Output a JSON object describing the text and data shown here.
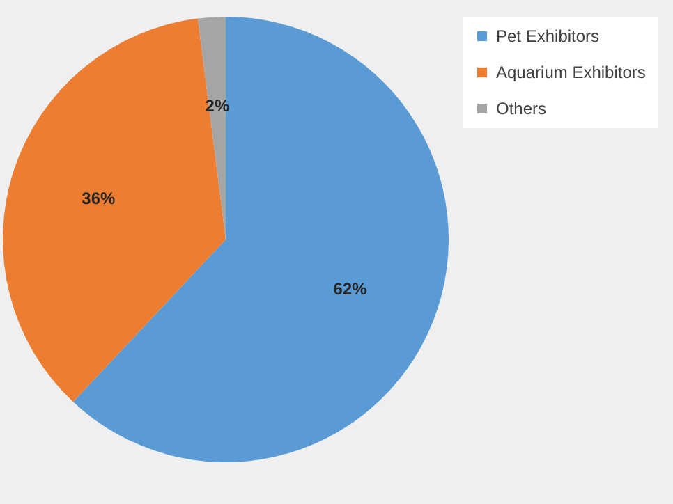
{
  "chart_data": {
    "type": "pie",
    "categories": [
      "Pet Exhibitors",
      "Aquarium Exhibitors",
      "Others"
    ],
    "values": [
      62,
      36,
      2
    ],
    "colors": [
      "#5b9bd5",
      "#ed7d31",
      "#a5a5a5"
    ],
    "value_labels": [
      "62%",
      "36%",
      "2%"
    ],
    "legend": "right"
  }
}
